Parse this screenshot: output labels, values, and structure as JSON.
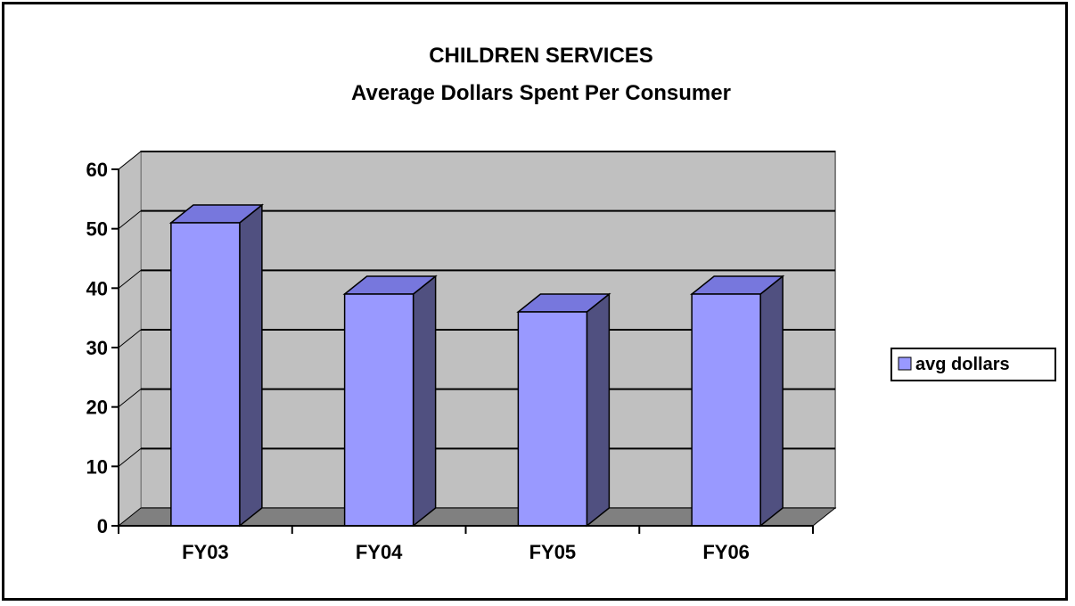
{
  "chart_data": {
    "type": "bar",
    "title": "CHILDREN SERVICES",
    "subtitle": "Average Dollars Spent Per Consumer",
    "categories": [
      "FY03",
      "FY04",
      "FY05",
      "FY06"
    ],
    "series": [
      {
        "name": "avg dollars",
        "values": [
          51,
          39,
          36,
          39
        ]
      }
    ],
    "ylim": [
      0,
      60
    ],
    "yticks": [
      0,
      10,
      20,
      30,
      40,
      50,
      60
    ],
    "grid": true,
    "legend_position": "right",
    "colors": {
      "bar_front": "#9999ff",
      "bar_side": "#505080",
      "bar_top": "#7777dd",
      "wall": "#c0c0c0",
      "floor": "#808080",
      "frame": "#000000"
    }
  }
}
